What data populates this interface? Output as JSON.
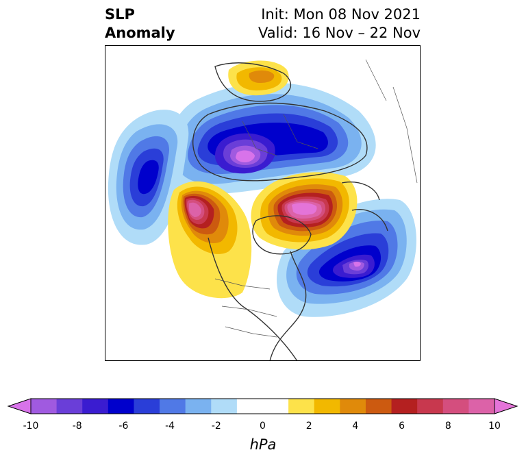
{
  "title": {
    "left_line1": "SLP",
    "left_line2": "Anomaly",
    "right_line1": "Init: Mon 08 Nov 2021",
    "right_line2": "Valid: 16 Nov – 22 Nov"
  },
  "map": {
    "variable": "Sea level pressure anomaly",
    "projection": "north-polar-stereographic"
  },
  "colorbar": {
    "unit": "hPa",
    "min": -10,
    "max": 10,
    "extend": "both",
    "ticks": [
      "-10",
      "-8",
      "-6",
      "-4",
      "-2",
      "0",
      "2",
      "4",
      "6",
      "8",
      "10"
    ],
    "colors": [
      "#d873ea",
      "#a05ae0",
      "#6a3ed8",
      "#3a1cd0",
      "#0000cc",
      "#2a3ed8",
      "#5079e6",
      "#7ab2f0",
      "#b0dcf8",
      "#ffffff",
      "#ffffff",
      "#fde24a",
      "#f2b800",
      "#e08a0a",
      "#cc5a10",
      "#b42020",
      "#c8384e",
      "#d44e7e",
      "#dc62a8",
      "#e474d8"
    ]
  }
}
